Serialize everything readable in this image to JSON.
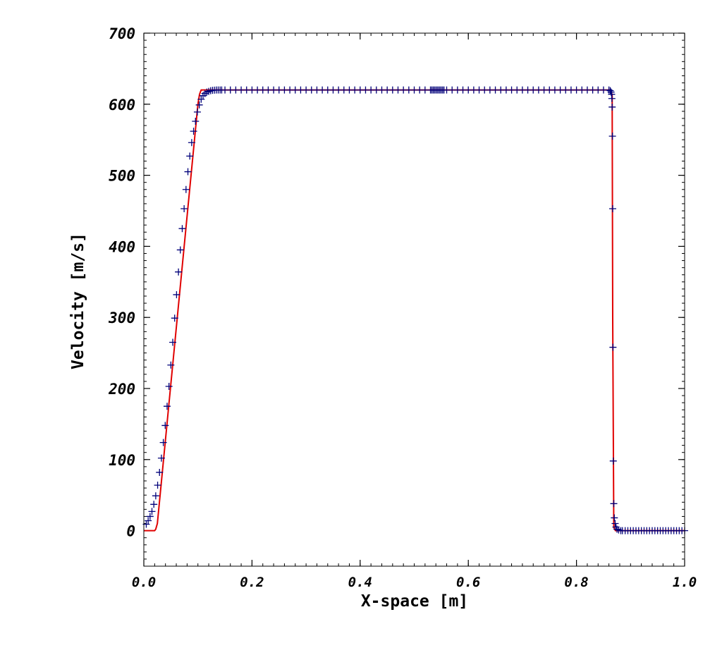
{
  "chart_data": {
    "type": "line",
    "title": "",
    "xlabel": "X-space [m]",
    "ylabel": "Velocity [m/s]",
    "xlim": [
      0.0,
      1.0
    ],
    "ylim": [
      -50,
      700
    ],
    "xticks": [
      0.0,
      0.2,
      0.4,
      0.6,
      0.8,
      1.0
    ],
    "xtick_labels": [
      "0.0",
      "0.2",
      "0.4",
      "0.6",
      "0.8",
      "1.0"
    ],
    "yticks": [
      0,
      100,
      200,
      300,
      400,
      500,
      600,
      700
    ],
    "ytick_labels": [
      "0",
      "100",
      "200",
      "300",
      "400",
      "500",
      "600",
      "700"
    ],
    "grid": false,
    "legend": "none",
    "colors": {
      "line": "#e00000",
      "markers": "#00007a",
      "axes": "#000000"
    },
    "series": [
      {
        "style": "line",
        "x": [
          0.0,
          0.02,
          0.022,
          0.025,
          0.1,
          0.103,
          0.106,
          0.86,
          0.862,
          0.864,
          0.866,
          0.867,
          0.869,
          0.872,
          1.0
        ],
        "y": [
          0,
          0,
          2,
          10,
          600,
          614,
          620,
          620,
          620,
          619,
          612,
          300,
          5,
          0,
          0
        ]
      },
      {
        "style": "markers",
        "marker": "+",
        "x": [
          0.0045,
          0.008,
          0.0115,
          0.015,
          0.0185,
          0.022,
          0.0255,
          0.029,
          0.0325,
          0.036,
          0.0395,
          0.043,
          0.0465,
          0.05,
          0.0535,
          0.057,
          0.0605,
          0.064,
          0.0675,
          0.071,
          0.0745,
          0.078,
          0.0815,
          0.085,
          0.0885,
          0.092,
          0.0955,
          0.099,
          0.1025,
          0.106,
          0.1095,
          0.113,
          0.1165,
          0.12,
          0.1235,
          0.127,
          0.1305,
          0.134,
          0.1375,
          0.141,
          0.144,
          0.15,
          0.16,
          0.17,
          0.18,
          0.19,
          0.2,
          0.21,
          0.22,
          0.23,
          0.24,
          0.25,
          0.26,
          0.27,
          0.28,
          0.29,
          0.3,
          0.31,
          0.32,
          0.33,
          0.34,
          0.35,
          0.36,
          0.37,
          0.38,
          0.39,
          0.4,
          0.41,
          0.42,
          0.43,
          0.44,
          0.45,
          0.46,
          0.47,
          0.48,
          0.49,
          0.5,
          0.51,
          0.52,
          0.53,
          0.5325,
          0.535,
          0.5375,
          0.54,
          0.5425,
          0.545,
          0.5475,
          0.55,
          0.5525,
          0.555,
          0.56,
          0.57,
          0.58,
          0.59,
          0.6,
          0.61,
          0.62,
          0.63,
          0.64,
          0.65,
          0.66,
          0.67,
          0.68,
          0.69,
          0.7,
          0.71,
          0.72,
          0.73,
          0.74,
          0.75,
          0.76,
          0.77,
          0.78,
          0.79,
          0.8,
          0.81,
          0.82,
          0.83,
          0.84,
          0.85,
          0.86,
          0.8625,
          0.864,
          0.865,
          0.8655,
          0.866,
          0.8665,
          0.867,
          0.8675,
          0.868,
          0.869,
          0.87,
          0.8715,
          0.873,
          0.875,
          0.878,
          0.882,
          0.885,
          0.89,
          0.895,
          0.9,
          0.905,
          0.91,
          0.915,
          0.92,
          0.925,
          0.93,
          0.935,
          0.94,
          0.945,
          0.95,
          0.955,
          0.96,
          0.965,
          0.97,
          0.975,
          0.98,
          0.985,
          0.99,
          0.995,
          1.0
        ],
        "y": [
          9,
          14,
          20,
          27,
          37,
          49,
          64,
          82,
          102,
          124,
          148,
          175,
          203,
          233,
          265,
          299,
          332,
          364,
          395,
          425,
          453,
          480,
          505,
          527,
          546,
          562,
          576,
          589,
          599,
          607,
          612,
          615,
          617,
          618,
          619,
          619.5,
          619.8,
          620,
          620,
          620,
          620,
          620,
          620,
          620,
          620,
          620,
          620,
          620,
          620,
          620,
          620,
          620,
          620,
          620,
          620,
          620,
          620,
          620,
          620,
          620,
          620,
          620,
          620,
          620,
          620,
          620,
          620,
          620,
          620,
          620,
          620,
          620,
          620,
          620,
          620,
          620,
          620,
          620,
          620,
          620,
          620,
          620,
          620,
          620,
          620,
          620,
          620,
          620,
          620,
          620,
          620,
          620,
          620,
          620,
          620,
          620,
          620,
          620,
          620,
          620,
          620,
          620,
          620,
          620,
          620,
          620,
          620,
          620,
          620,
          620,
          620,
          620,
          620,
          620,
          620,
          620,
          620,
          620,
          620,
          620,
          620,
          619,
          617,
          614,
          608,
          596,
          555,
          453,
          258,
          98,
          38,
          18,
          10,
          5,
          2,
          1,
          0,
          0,
          0,
          0,
          0,
          0,
          0,
          0,
          0,
          0,
          0,
          0,
          0,
          0,
          0,
          0,
          0,
          0,
          0,
          0,
          0,
          0,
          0,
          0,
          0
        ]
      }
    ]
  }
}
